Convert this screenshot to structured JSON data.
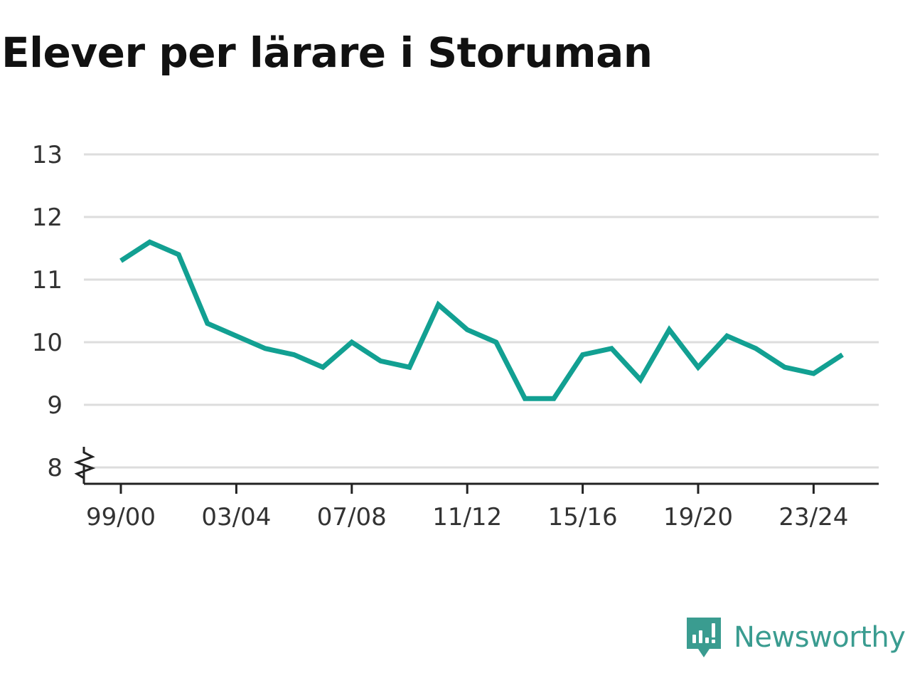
{
  "title": "Elever per lärare i Storuman",
  "brand": {
    "name": "Newsworthy",
    "icon": "newsworthy-logo-icon"
  },
  "colors": {
    "line": "#12a092",
    "grid": "#dddddd",
    "axis": "#222222",
    "title": "#111111",
    "brand": "#3a9c90"
  },
  "chart_data": {
    "type": "line",
    "title": "Elever per lärare i Storuman",
    "xlabel": "",
    "ylabel": "",
    "x": [
      "99/00",
      "00/01",
      "01/02",
      "02/03",
      "03/04",
      "04/05",
      "05/06",
      "06/07",
      "07/08",
      "08/09",
      "09/10",
      "10/11",
      "11/12",
      "12/13",
      "13/14",
      "14/15",
      "15/16",
      "16/17",
      "17/18",
      "18/19",
      "19/20",
      "20/21",
      "21/22",
      "22/23",
      "23/24",
      "24/25"
    ],
    "x_tick_labels": [
      "99/00",
      "03/04",
      "07/08",
      "11/12",
      "15/16",
      "19/20",
      "23/24"
    ],
    "series": [
      {
        "values": [
          11.3,
          11.6,
          11.4,
          10.3,
          10.1,
          9.9,
          9.8,
          9.6,
          10.0,
          9.7,
          9.6,
          10.6,
          10.2,
          10.0,
          9.1,
          9.1,
          9.8,
          9.9,
          9.4,
          10.2,
          9.6,
          10.1,
          9.9,
          9.6,
          9.5,
          9.8
        ]
      }
    ],
    "y_ticks": [
      8,
      9,
      10,
      11,
      12,
      13
    ],
    "ylim": [
      8,
      13
    ],
    "y_axis_break": true,
    "grid": true,
    "legend": "none"
  }
}
